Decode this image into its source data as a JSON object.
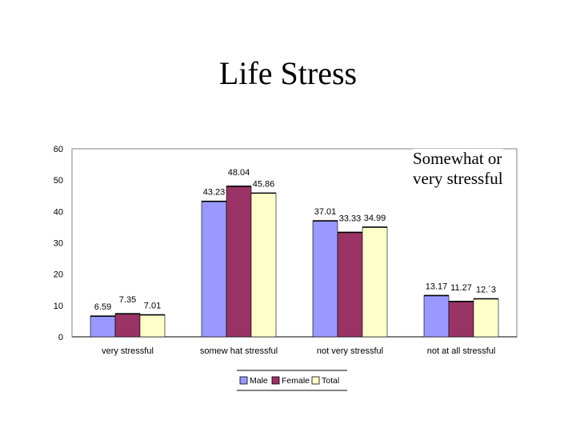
{
  "title": "Life Stress",
  "note": [
    "Somewhat or",
    "very stressful"
  ],
  "colors": {
    "Male": "#9999ff",
    "Female": "#993366",
    "Total": "#ffffcc"
  },
  "chart_data": {
    "type": "bar",
    "title": "",
    "xlabel": "",
    "ylabel": "",
    "ylim": [
      0,
      60
    ],
    "yticks": [
      "0",
      "10",
      "20",
      "30",
      "40",
      "50",
      "60"
    ],
    "categories": [
      "very stressful",
      "somew hat stressful",
      "not very stressful",
      "not at all stressful"
    ],
    "series": [
      {
        "name": "Male",
        "values": [
          6.59,
          43.23,
          37.01,
          13.17
        ],
        "labels": [
          "6.59",
          "43.23",
          "37.01",
          "13.17"
        ]
      },
      {
        "name": "Female",
        "values": [
          7.35,
          48.04,
          33.33,
          11.27
        ],
        "labels": [
          "7.35",
          "48.04",
          "33.33",
          "11.27"
        ]
      },
      {
        "name": "Total",
        "values": [
          7.01,
          45.86,
          34.99,
          12.13
        ],
        "labels": [
          "7.01",
          "45.86",
          "34.99",
          "12.´3"
        ]
      }
    ],
    "legend": "bottom",
    "grid": false
  }
}
